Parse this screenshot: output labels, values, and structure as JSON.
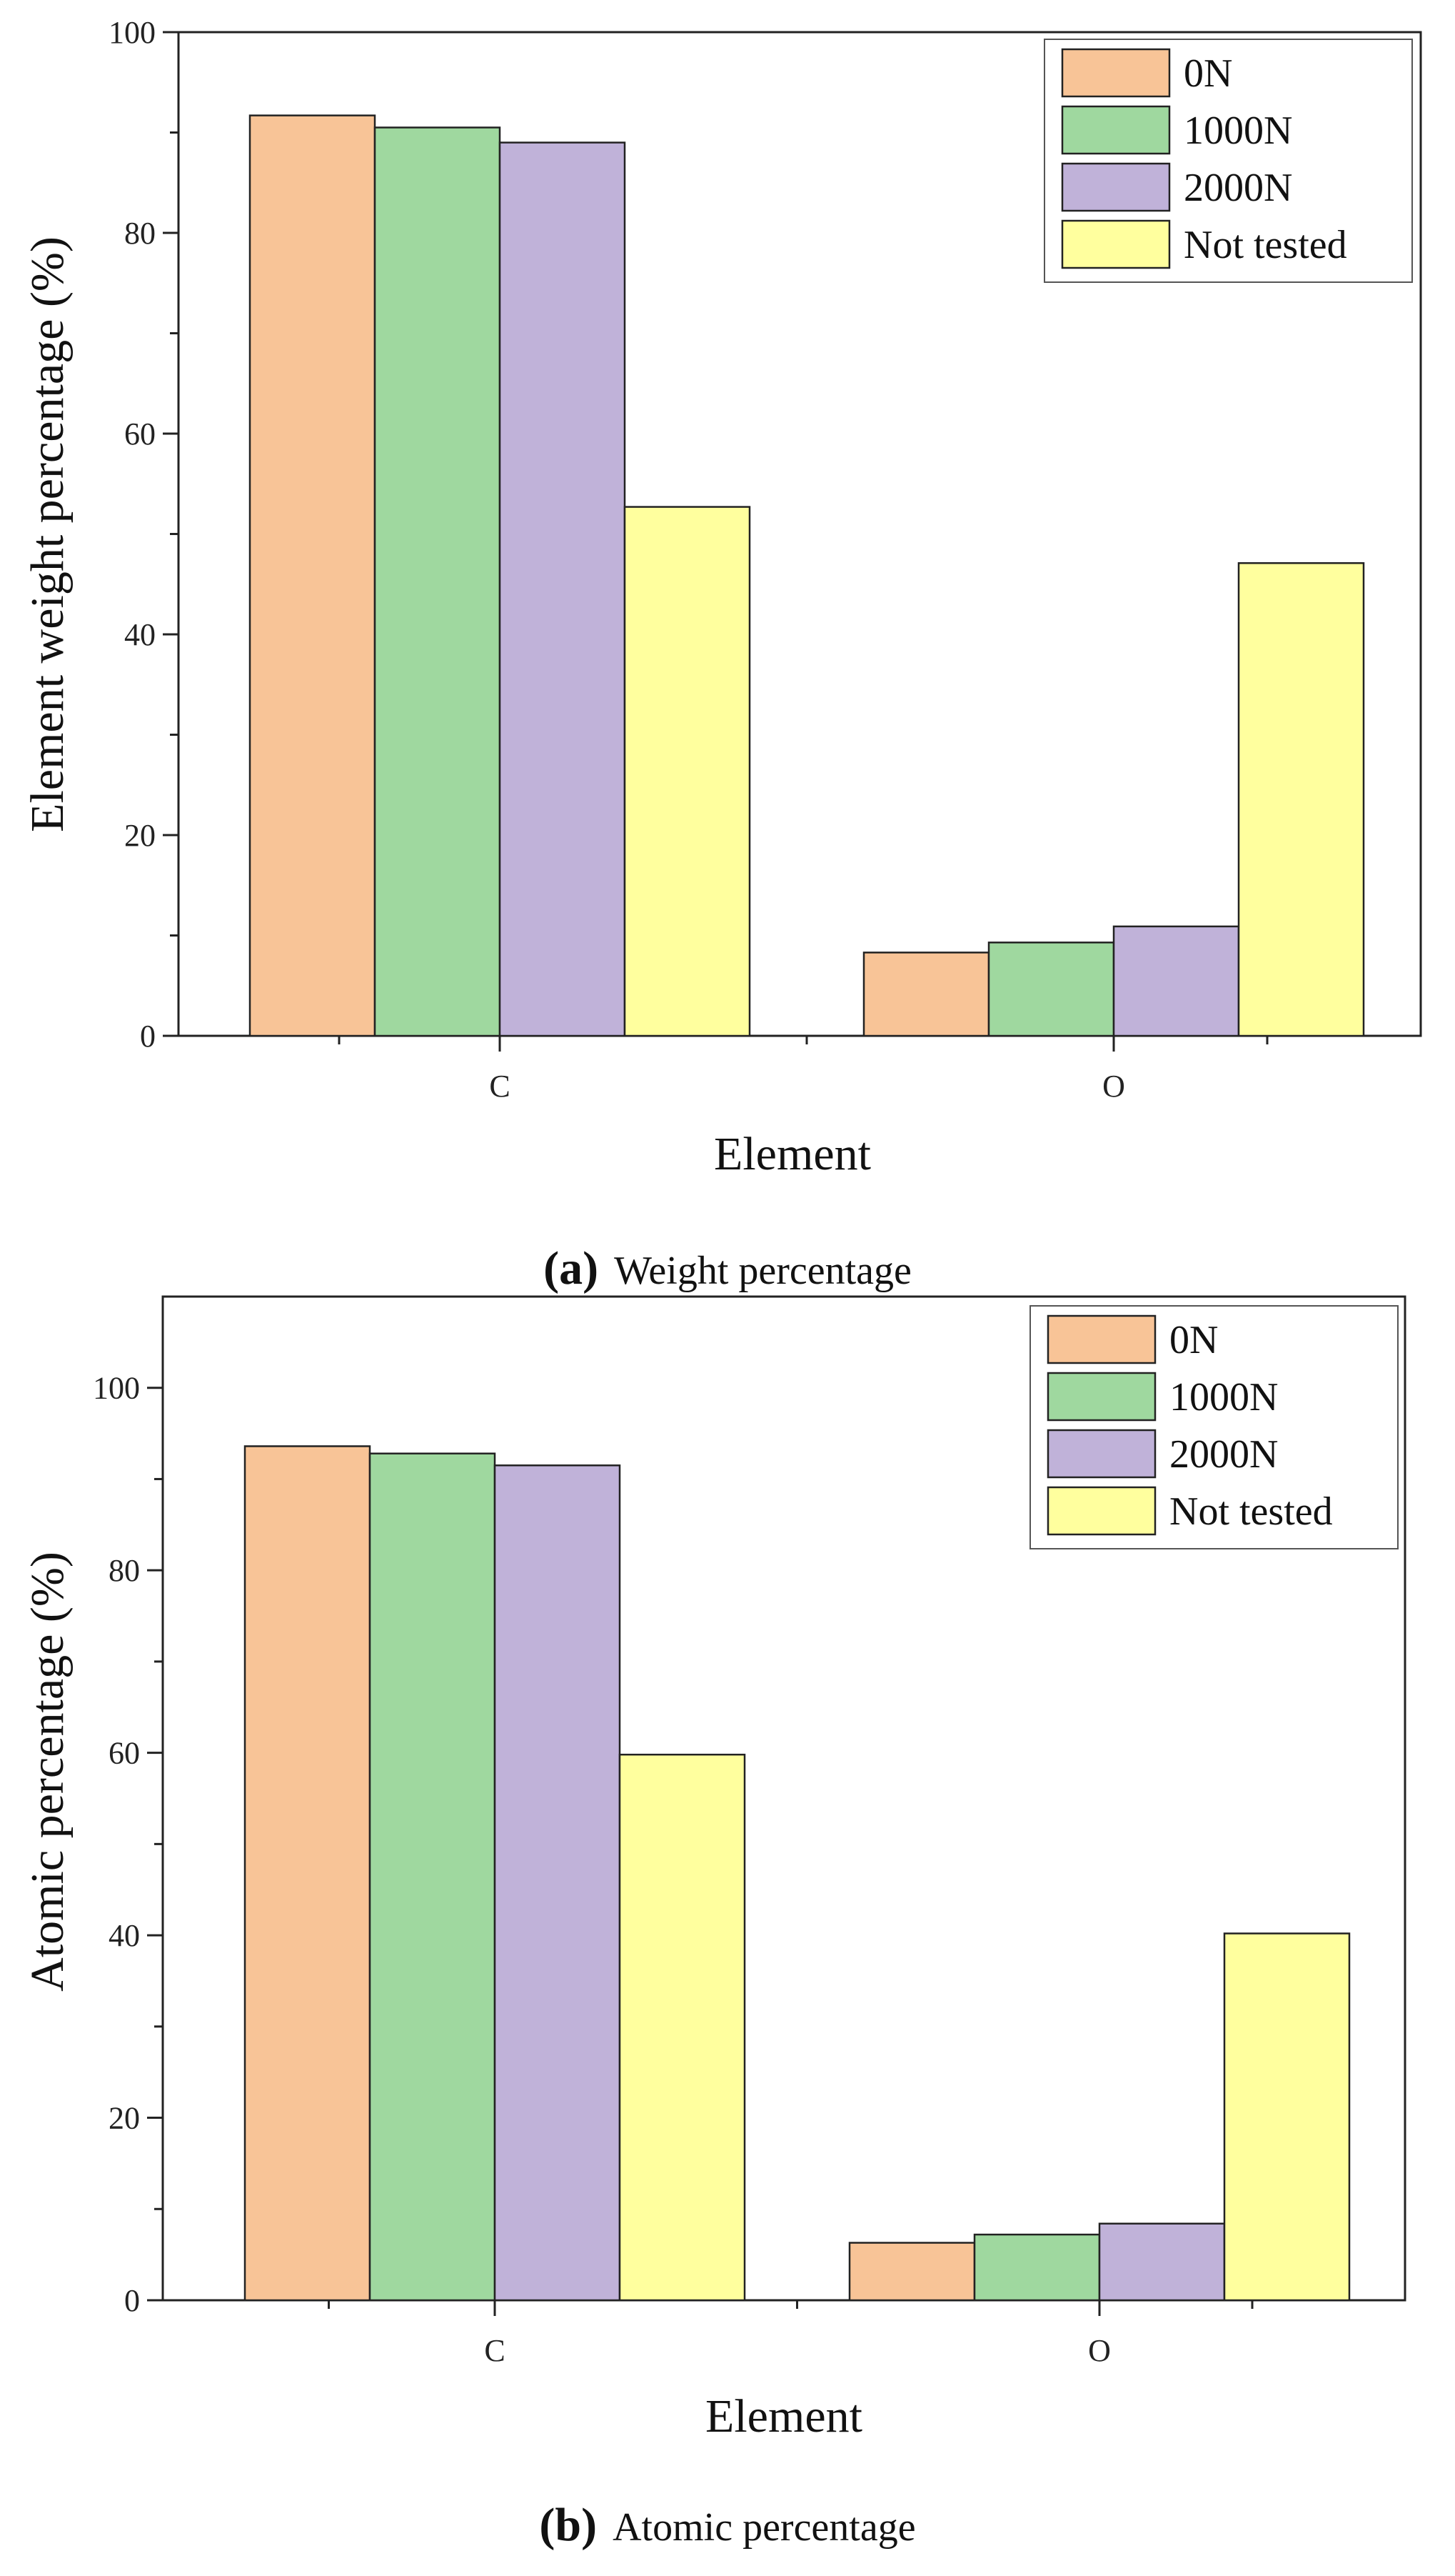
{
  "colors": {
    "0N": "#f8c497",
    "1000N": "#9fd89f",
    "2000N": "#c0b2d9",
    "Not tested": "#ffff9e",
    "axis": "#222222"
  },
  "chart_data": [
    {
      "type": "bar",
      "title": "",
      "xlabel": "Element",
      "ylabel": "Element weight percentage (%)",
      "categories": [
        "C",
        "O"
      ],
      "ylim": [
        0,
        100
      ],
      "yticks": [
        0,
        20,
        40,
        60,
        80,
        100
      ],
      "legend_position": "top-right",
      "series": [
        {
          "name": "0N",
          "values": [
            91.7,
            8.3
          ]
        },
        {
          "name": "1000N",
          "values": [
            90.5,
            9.3
          ]
        },
        {
          "name": "2000N",
          "values": [
            89.0,
            10.9
          ]
        },
        {
          "name": "Not tested",
          "values": [
            52.7,
            47.1
          ]
        }
      ],
      "caption_letter": "(a)",
      "caption_text": "Weight percentage"
    },
    {
      "type": "bar",
      "title": "",
      "xlabel": "Element",
      "ylabel": "Atomic percentage (%)",
      "categories": [
        "C",
        "O"
      ],
      "ylim": [
        0,
        110
      ],
      "yticks": [
        0,
        20,
        40,
        60,
        80,
        100
      ],
      "legend_position": "top-right",
      "series": [
        {
          "name": "0N",
          "values": [
            93.6,
            6.3
          ]
        },
        {
          "name": "1000N",
          "values": [
            92.8,
            7.2
          ]
        },
        {
          "name": "2000N",
          "values": [
            91.5,
            8.4
          ]
        },
        {
          "name": "Not tested",
          "values": [
            59.8,
            40.2
          ]
        }
      ],
      "caption_letter": "(b)",
      "caption_text": "Atomic percentage"
    }
  ]
}
